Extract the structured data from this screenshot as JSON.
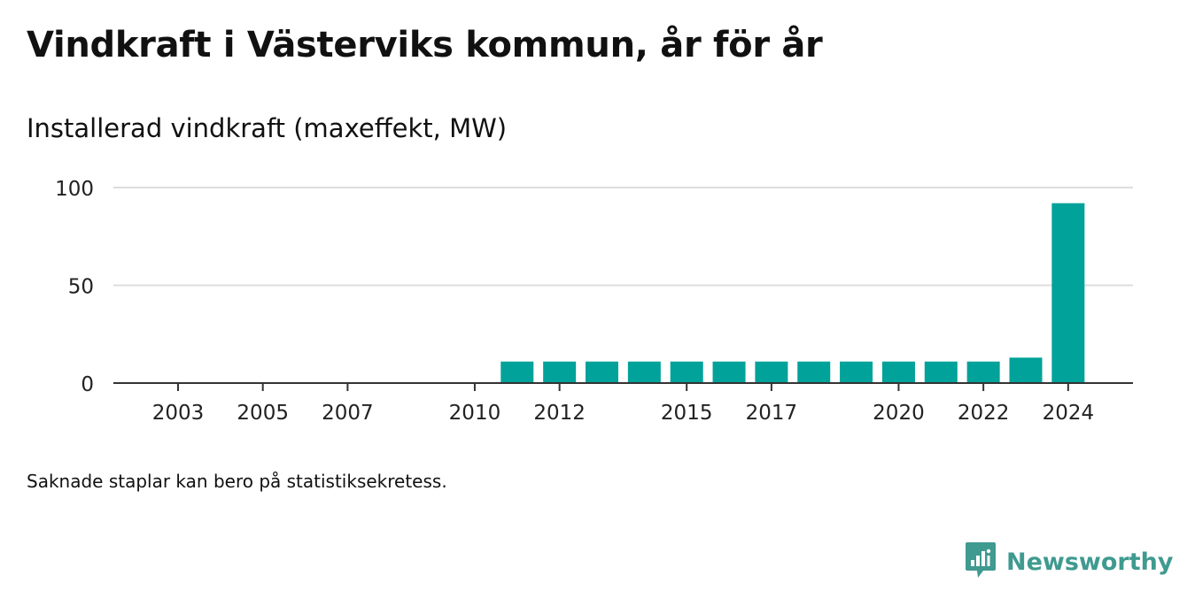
{
  "title": "Vindkraft i Västerviks kommun, år för år",
  "subtitle": "Installerad vindkraft (maxeffekt, MW)",
  "note": "Saknade staplar kan bero på statistiksekretess.",
  "brand": {
    "name": "Newsworthy",
    "logo_icon": "newsworthy-chart-bubble-icon",
    "color": "#3f9a90"
  },
  "chart_data": {
    "type": "bar",
    "title": "Installerad vindkraft (maxeffekt, MW)",
    "xlabel": "",
    "ylabel": "",
    "categories": [
      "2003",
      "2004",
      "2005",
      "2006",
      "2007",
      "2008",
      "2009",
      "2010",
      "2011",
      "2012",
      "2013",
      "2014",
      "2015",
      "2016",
      "2017",
      "2018",
      "2019",
      "2020",
      "2021",
      "2022",
      "2023",
      "2024"
    ],
    "values": [
      0,
      0,
      0,
      0,
      0,
      0,
      0,
      0,
      11,
      11,
      11,
      11,
      11,
      11,
      11,
      11,
      11,
      11,
      11,
      11,
      13,
      92
    ],
    "xticks": [
      "2003",
      "2005",
      "2007",
      "2010",
      "2012",
      "2015",
      "2017",
      "2020",
      "2022",
      "2024"
    ],
    "yticks": [
      0,
      50,
      100
    ],
    "ylim": [
      0,
      100
    ],
    "grid": true,
    "bar_color": "#00a29a"
  }
}
